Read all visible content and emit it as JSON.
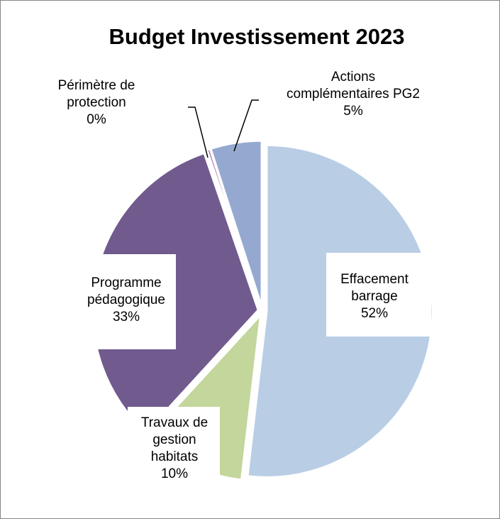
{
  "chart_data": {
    "type": "pie",
    "title": "Budget Investissement 2023",
    "slices": [
      {
        "label_lines": [
          "Effacement",
          "barrage"
        ],
        "pct_text": "52%",
        "value": 52,
        "color": "#b9cde5"
      },
      {
        "label_lines": [
          "Travaux de",
          "gestion",
          "habitats"
        ],
        "pct_text": "10%",
        "value": 10,
        "color": "#c3d69b"
      },
      {
        "label_lines": [
          "Programme",
          "pédagogique"
        ],
        "pct_text": "33%",
        "value": 33,
        "color": "#705a8e"
      },
      {
        "label_lines": [
          "Périmètre de",
          "protection"
        ],
        "pct_text": "0%",
        "value": 0.3,
        "color": "#a96ca4"
      },
      {
        "label_lines": [
          "Actions",
          "complémentaires PG2"
        ],
        "pct_text": "5%",
        "value": 5,
        "color": "#95a9d0"
      }
    ],
    "legend": "none",
    "exploded": true
  }
}
